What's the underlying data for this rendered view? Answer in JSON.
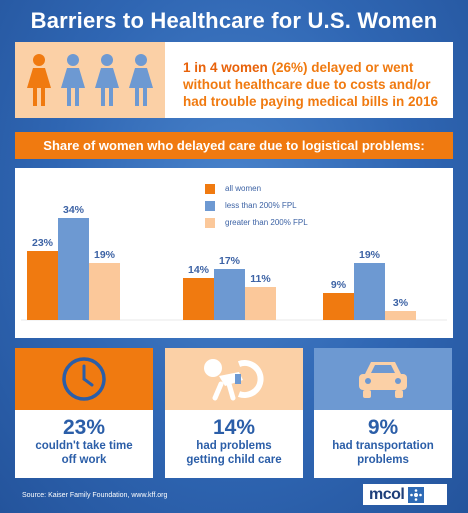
{
  "title": "Barriers to Healthcare for U.S. Women",
  "stat": {
    "highlight": "1 in 4 women",
    "line1_rest": " (26%) delayed or went",
    "line2": "without healthcare due to costs and/or",
    "line3": "had trouble paying medical bills in 2016"
  },
  "chart_header": "Share of women who delayed care due to logistical problems:",
  "colors": {
    "all_women": "#f07a10",
    "less_200": "#6d99d2",
    "greater_200": "#fbc89a"
  },
  "chart_data": {
    "type": "bar",
    "categories": [
      "couldn't take time off work",
      "had problems getting child care",
      "had transportation problems"
    ],
    "series": [
      {
        "name": "all women",
        "values": [
          23,
          14,
          9
        ]
      },
      {
        "name": "less than 200% FPL",
        "values": [
          34,
          17,
          19
        ]
      },
      {
        "name": "greater than 200% FPL",
        "values": [
          19,
          11,
          3
        ]
      }
    ],
    "value_suffix": "%",
    "ylim": [
      0,
      40
    ],
    "grid": false,
    "legend_position": "top-center"
  },
  "cards": [
    {
      "icon": "clock-icon",
      "pct": "23%",
      "line1": "couldn't take time",
      "line2": "off work",
      "top_bg": "#f07a10"
    },
    {
      "icon": "baby-icon",
      "pct": "14%",
      "line1": "had problems",
      "line2": "getting child care",
      "top_bg": "#fbd0a6"
    },
    {
      "icon": "car-icon",
      "pct": "9%",
      "line1": "had transportation",
      "line2": "problems",
      "top_bg": "#6d99d2"
    }
  ],
  "source": "Source:  Kaiser Family Foundation, www.kff.org",
  "logo": "mcol"
}
